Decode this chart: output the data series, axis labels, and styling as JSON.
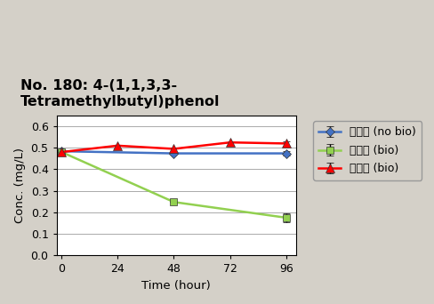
{
  "title": "No. 180: 4-(1,1,3,3-\nTetramethylbutyl)phenol",
  "xlabel": "Time (hour)",
  "ylabel": "Conc. (mg/L)",
  "xlim": [
    -2,
    100
  ],
  "ylim": [
    0,
    0.65
  ],
  "yticks": [
    0,
    0.1,
    0.2,
    0.3,
    0.4,
    0.5,
    0.6
  ],
  "xticks": [
    0,
    24,
    48,
    72,
    96
  ],
  "series": [
    {
      "label": "지수식 (no bio)",
      "x": [
        0,
        48,
        96
      ],
      "y": [
        0.484,
        0.474,
        0.474
      ],
      "color": "#4472C4",
      "marker": "D",
      "markersize": 5,
      "linewidth": 1.8,
      "error_last": 0.012
    },
    {
      "label": "지수식 (bio)",
      "x": [
        0,
        48,
        96
      ],
      "y": [
        0.481,
        0.248,
        0.175
      ],
      "color": "#92D050",
      "marker": "s",
      "markersize": 6,
      "linewidth": 1.8,
      "error_last": 0.022
    },
    {
      "label": "유수식 (bio)",
      "x": [
        0,
        24,
        48,
        72,
        96
      ],
      "y": [
        0.48,
        0.51,
        0.495,
        0.525,
        0.52
      ],
      "color": "#FF0000",
      "marker": "^",
      "markersize": 7,
      "linewidth": 1.8,
      "error_last": 0.01
    }
  ],
  "background_color": "#D4D0C8",
  "plot_bg_color": "#FFFFFF",
  "title_fontsize": 11.5,
  "label_fontsize": 9.5,
  "tick_fontsize": 9,
  "legend_fontsize": 9
}
